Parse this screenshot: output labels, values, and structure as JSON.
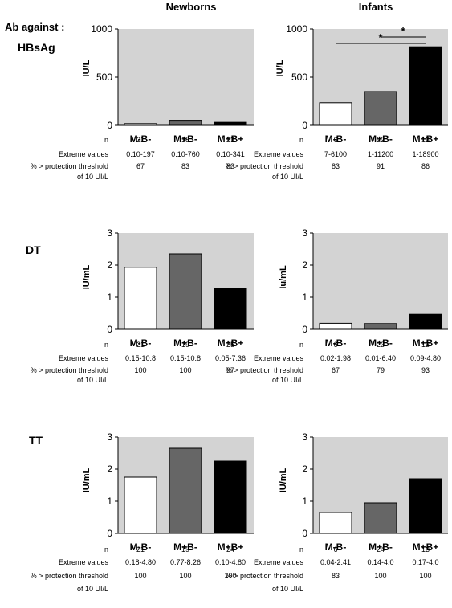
{
  "header": {
    "ab_against": "Ab against :",
    "col_newborns": "Newborns",
    "col_infants": "Infants"
  },
  "row_labels": {
    "n": "n",
    "extreme": "Extreme values",
    "threshold_line1": "% > protection threshold",
    "threshold_line2": "of 10 UI/L"
  },
  "colors": {
    "plot_bg": "#d3d3d3",
    "M-B-": "#ffffff",
    "M+B-": "#666666",
    "M+B+": "#000000"
  },
  "chart_data": [
    {
      "type": "bar",
      "antigen": "HBsAg",
      "group": "Newborns",
      "categories": [
        "M-B-",
        "M+B-",
        "M+B+"
      ],
      "values": [
        18,
        45,
        32
      ],
      "ylabel": "IU/L",
      "ylim": [
        0,
        1000
      ],
      "yticks": [
        0,
        500,
        1000
      ],
      "n": [
        "21",
        "18",
        "23"
      ],
      "extreme": [
        "0.10-197",
        "0.10-760",
        "0.10-341"
      ],
      "pct": [
        "67",
        "83",
        "83"
      ],
      "significance": []
    },
    {
      "type": "bar",
      "antigen": "HBsAg",
      "group": "Infants",
      "categories": [
        "M-B-",
        "M+B-",
        "M+B+"
      ],
      "values": [
        235,
        350,
        815
      ],
      "ylabel": "IU/L",
      "ylim": [
        0,
        1000
      ],
      "yticks": [
        0,
        500,
        1000
      ],
      "n": [
        "6",
        "22",
        "13"
      ],
      "extreme": [
        "7-6100",
        "1-11200",
        "1-18900"
      ],
      "pct": [
        "83",
        "91",
        "86"
      ],
      "significance": [
        {
          "from": 1,
          "to": 2,
          "label": "*"
        },
        {
          "from": 0,
          "to": 2,
          "label": "*"
        }
      ]
    },
    {
      "type": "bar",
      "antigen": "DT",
      "group": "Newborns",
      "categories": [
        "M-B-",
        "M+B-",
        "M+B+"
      ],
      "values": [
        1.93,
        2.35,
        1.28
      ],
      "ylabel": "IU/mL",
      "ylim": [
        0,
        3
      ],
      "yticks": [
        0,
        1,
        2,
        3
      ],
      "n": [
        "21",
        "19",
        "25"
      ],
      "extreme": [
        "0.15-10.8",
        "0.15-10.8",
        "0.05-7.36"
      ],
      "pct": [
        "100",
        "100",
        "97"
      ],
      "significance": []
    },
    {
      "type": "bar",
      "antigen": "DT",
      "group": "Infants",
      "categories": [
        "M-B-",
        "M+B-",
        "M+B+"
      ],
      "values": [
        0.19,
        0.18,
        0.47
      ],
      "ylabel": "Iu/mL",
      "ylim": [
        0,
        3
      ],
      "yticks": [
        0,
        1,
        2,
        3
      ],
      "n": [
        "6",
        "23",
        "13"
      ],
      "extreme": [
        "0.02-1.98",
        "0.01-6.40",
        "0.09-4.80"
      ],
      "pct": [
        "67",
        "79",
        "93"
      ],
      "significance": []
    },
    {
      "type": "bar",
      "antigen": "TT",
      "group": "Newborns",
      "categories": [
        "M-B-",
        "M+B-",
        "M+B+"
      ],
      "values": [
        1.75,
        2.65,
        2.25
      ],
      "ylabel": "IU/mL",
      "ylim": [
        0,
        3
      ],
      "yticks": [
        0,
        1,
        2,
        3
      ],
      "n": [
        "21",
        "19",
        "24"
      ],
      "extreme": [
        "0.18-4.80",
        "0.77-8.26",
        "0.10-4.80"
      ],
      "pct": [
        "100",
        "100",
        "100"
      ],
      "significance": []
    },
    {
      "type": "bar",
      "antigen": "TT",
      "group": "Infants",
      "categories": [
        "M-B-",
        "M+B-",
        "M+B+"
      ],
      "values": [
        0.65,
        0.95,
        1.7
      ],
      "ylabel": "IU/mL",
      "ylim": [
        0,
        3
      ],
      "yticks": [
        0,
        1,
        2,
        3
      ],
      "n": [
        "6",
        "24",
        "13"
      ],
      "extreme": [
        "0.04-2.41",
        "0.14-4.0",
        "0.17-4.0"
      ],
      "pct": [
        "83",
        "100",
        "100"
      ],
      "significance": []
    }
  ]
}
